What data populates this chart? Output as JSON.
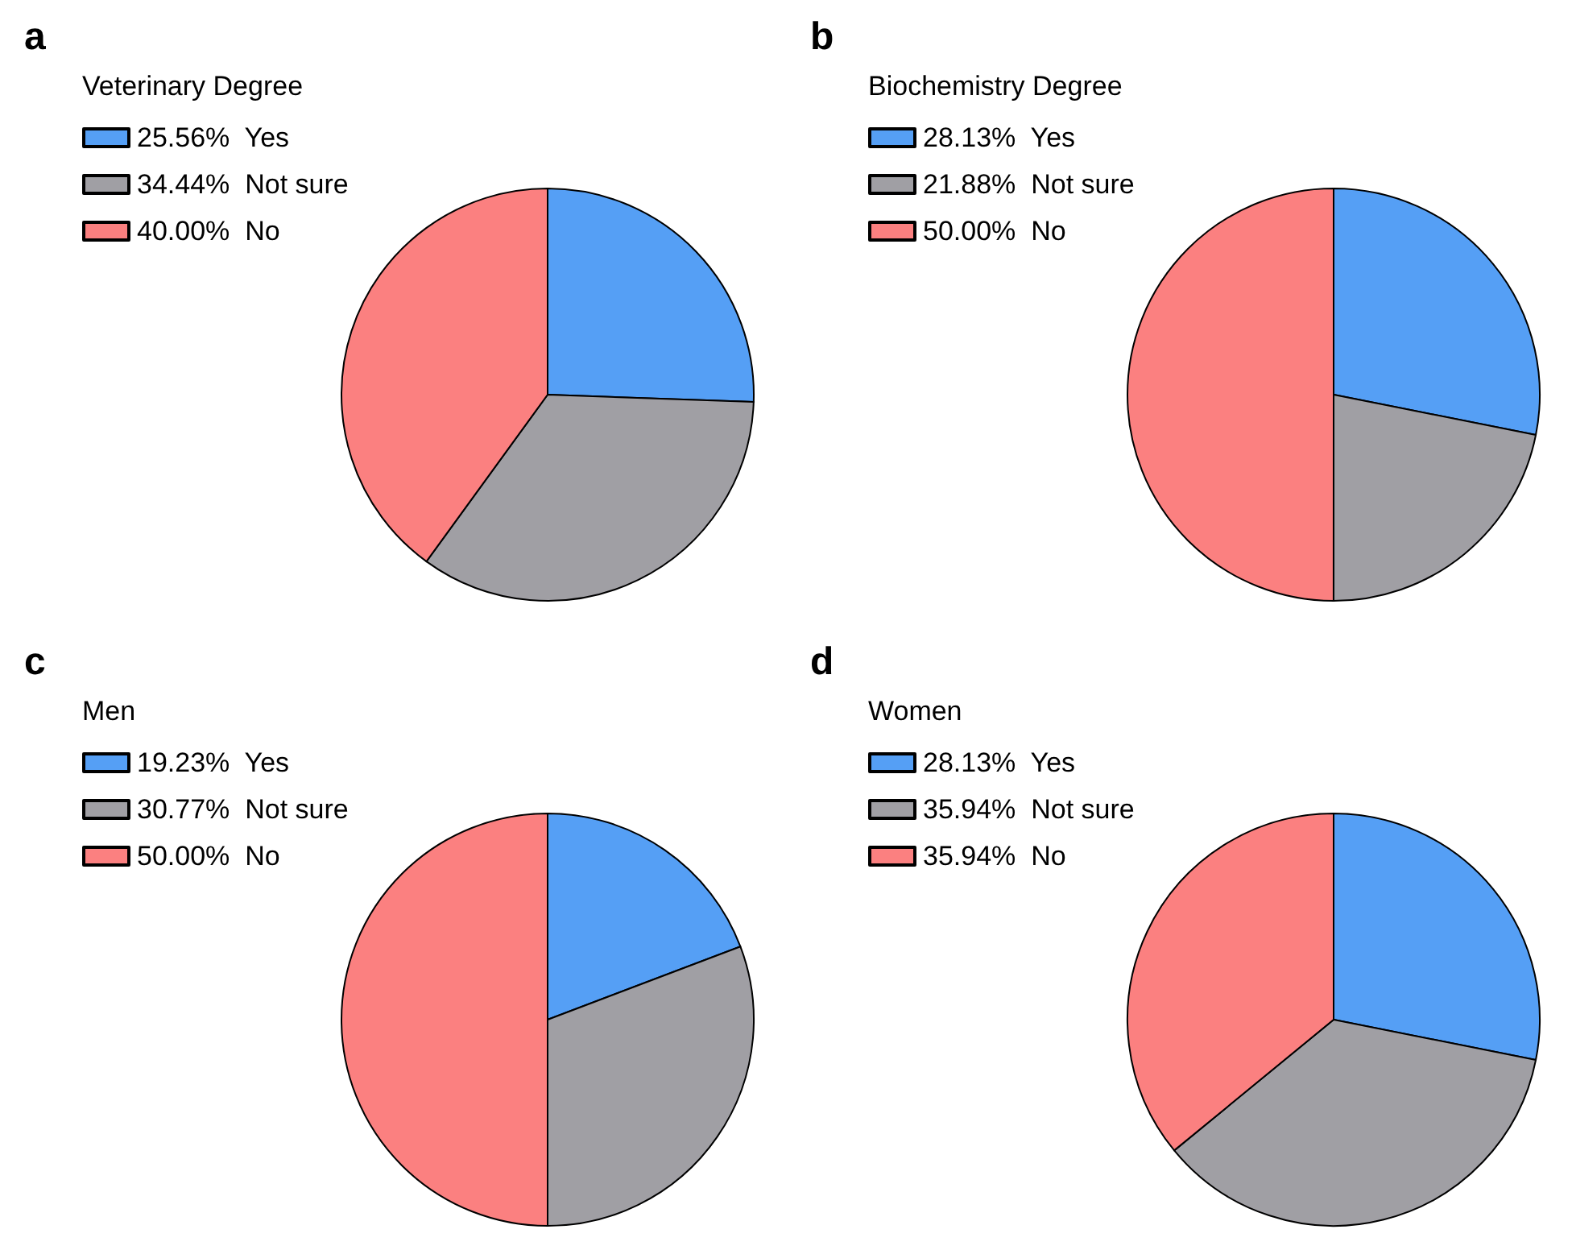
{
  "chart_data": [
    {
      "type": "pie",
      "title": "Veterinary Degree",
      "annotations": [
        "a"
      ],
      "categories": [
        "Yes",
        "Not sure",
        "No"
      ],
      "values": [
        25.56,
        34.44,
        40.0
      ],
      "value_labels": [
        "25.56%",
        "34.44%",
        "40.00%"
      ],
      "colors": [
        "#559ff5",
        "#a09fa4",
        "#fb8080"
      ],
      "legend": "top left"
    },
    {
      "type": "pie",
      "title": "Biochemistry Degree",
      "annotations": [
        "b"
      ],
      "categories": [
        "Yes",
        "Not sure",
        "No"
      ],
      "values": [
        28.13,
        21.88,
        50.0
      ],
      "value_labels": [
        "28.13%",
        "21.88%",
        "50.00%"
      ],
      "colors": [
        "#559ff5",
        "#a09fa4",
        "#fb8080"
      ],
      "legend": "top left"
    },
    {
      "type": "pie",
      "title": "Men",
      "annotations": [
        "c"
      ],
      "categories": [
        "Yes",
        "Not sure",
        "No"
      ],
      "values": [
        19.23,
        30.77,
        50.0
      ],
      "value_labels": [
        "19.23%",
        "30.77%",
        "50.00%"
      ],
      "colors": [
        "#559ff5",
        "#a09fa4",
        "#fb8080"
      ],
      "legend": "top left"
    },
    {
      "type": "pie",
      "title": "Women",
      "annotations": [
        "d"
      ],
      "categories": [
        "Yes",
        "Not sure",
        "No"
      ],
      "values": [
        28.13,
        35.94,
        35.94
      ],
      "value_labels": [
        "28.13%",
        "35.94%",
        "35.94%"
      ],
      "colors": [
        "#559ff5",
        "#a09fa4",
        "#fb8080"
      ],
      "legend": "top left"
    }
  ]
}
